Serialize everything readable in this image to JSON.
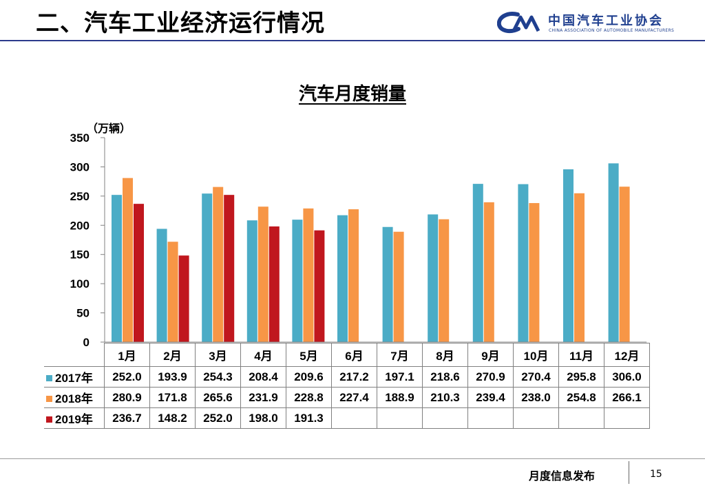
{
  "slide": {
    "title": "二、汽车工业经济运行情况",
    "logo_cn": "中国汽车工业协会",
    "logo_en": "CHINA ASSOCIATION OF AUTOMOBILE MANUFACTURERS",
    "footer_text": "月度信息发布",
    "page_number": "15"
  },
  "chart_data": {
    "type": "bar",
    "title": "汽车月度销量",
    "unit_label": "（万辆）",
    "categories": [
      "1月",
      "2月",
      "3月",
      "4月",
      "5月",
      "6月",
      "7月",
      "8月",
      "9月",
      "10月",
      "11月",
      "12月"
    ],
    "series": [
      {
        "name": "2017年",
        "color": "#4bacc6",
        "values": [
          252.0,
          193.9,
          254.3,
          208.4,
          209.6,
          217.2,
          197.1,
          218.6,
          270.9,
          270.4,
          295.8,
          306.0
        ]
      },
      {
        "name": "2018年",
        "color": "#f79646",
        "values": [
          280.9,
          171.8,
          265.6,
          231.9,
          228.8,
          227.4,
          188.9,
          210.3,
          239.4,
          238.0,
          254.8,
          266.1
        ]
      },
      {
        "name": "2019年",
        "color": "#c0171e",
        "values": [
          236.7,
          148.2,
          252.0,
          198.0,
          191.3,
          null,
          null,
          null,
          null,
          null,
          null,
          null
        ]
      }
    ],
    "ylim": [
      0,
      350
    ],
    "yticks": [
      0,
      50,
      100,
      150,
      200,
      250,
      300,
      350
    ],
    "grid": false,
    "legend": "data-table"
  }
}
